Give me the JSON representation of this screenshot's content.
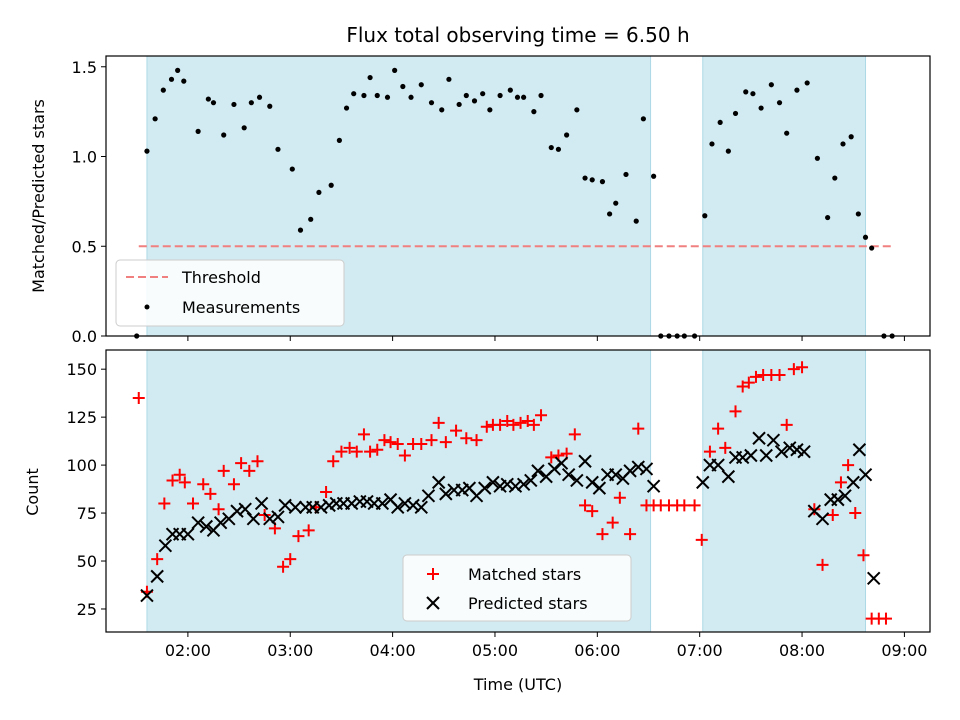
{
  "title": "Flux total observing time = 6.50 h",
  "colors": {
    "shade": "#add8e6",
    "threshold": "#f08080",
    "measurements": "#000000",
    "matched": "#ff0000",
    "predicted": "#000000"
  },
  "chart_data": [
    {
      "type": "scatter",
      "ylabel": "Matched/Predicted stars",
      "ylim": [
        0,
        1.56
      ],
      "yticks": [
        "0.0",
        "0.5",
        "1.0",
        "1.5"
      ],
      "xlim": [
        1.2,
        9.25
      ],
      "shaded_intervals": [
        [
          1.6,
          6.52
        ],
        [
          7.03,
          8.62
        ]
      ],
      "threshold": {
        "name": "Threshold",
        "value": 0.5,
        "x": [
          1.52,
          8.88
        ]
      },
      "legend": {
        "placement": "lower-left",
        "entries": [
          "Threshold",
          "Measurements"
        ]
      },
      "series": [
        {
          "name": "Measurements",
          "marker": "dot",
          "x": [
            1.5,
            1.6,
            1.68,
            1.76,
            1.84,
            1.9,
            1.96,
            2.1,
            2.2,
            2.25,
            2.35,
            2.45,
            2.55,
            2.62,
            2.7,
            2.8,
            2.88,
            3.02,
            3.1,
            3.2,
            3.28,
            3.4,
            3.48,
            3.55,
            3.62,
            3.72,
            3.78,
            3.85,
            3.95,
            4.02,
            4.1,
            4.18,
            4.28,
            4.38,
            4.48,
            4.55,
            4.65,
            4.72,
            4.8,
            4.88,
            4.95,
            5.05,
            5.15,
            5.22,
            5.28,
            5.38,
            5.45,
            5.55,
            5.62,
            5.7,
            5.8,
            5.88,
            5.95,
            6.05,
            6.12,
            6.18,
            6.28,
            6.38,
            6.45,
            6.55,
            6.62,
            6.7,
            6.78,
            6.85,
            6.95,
            7.05,
            7.12,
            7.2,
            7.28,
            7.35,
            7.45,
            7.52,
            7.6,
            7.7,
            7.78,
            7.85,
            7.95,
            8.05,
            8.15,
            8.25,
            8.32,
            8.4,
            8.48,
            8.55,
            8.62,
            8.68,
            8.8,
            8.88
          ],
          "y": [
            0,
            1.03,
            1.21,
            1.37,
            1.43,
            1.48,
            1.42,
            1.14,
            1.32,
            1.3,
            1.12,
            1.29,
            1.16,
            1.3,
            1.33,
            1.28,
            1.04,
            0.93,
            0.59,
            0.65,
            0.8,
            0.84,
            1.09,
            1.27,
            1.35,
            1.34,
            1.44,
            1.34,
            1.33,
            1.48,
            1.39,
            1.33,
            1.4,
            1.3,
            1.26,
            1.43,
            1.29,
            1.34,
            1.31,
            1.35,
            1.26,
            1.34,
            1.37,
            1.33,
            1.33,
            1.25,
            1.34,
            1.05,
            1.04,
            1.12,
            1.26,
            0.88,
            0.87,
            0.86,
            0.68,
            0.74,
            0.9,
            0.64,
            1.21,
            0.89,
            0,
            0,
            0,
            0,
            0,
            0.67,
            1.07,
            1.19,
            1.03,
            1.24,
            1.36,
            1.35,
            1.27,
            1.4,
            1.3,
            1.13,
            1.37,
            1.41,
            0.99,
            0.66,
            0.88,
            1.07,
            1.11,
            0.68,
            0.55,
            0.49,
            0,
            0
          ]
        }
      ]
    },
    {
      "type": "scatter",
      "xlabel": "Time (UTC)",
      "ylabel": "Count",
      "ylim": [
        13,
        160
      ],
      "yticks": [
        "25",
        "50",
        "75",
        "100",
        "125",
        "150"
      ],
      "xlim": [
        1.2,
        9.25
      ],
      "xticks": [
        "02:00",
        "03:00",
        "04:00",
        "05:00",
        "06:00",
        "07:00",
        "08:00",
        "09:00"
      ],
      "shaded_intervals": [
        [
          1.6,
          6.52
        ],
        [
          7.03,
          8.62
        ]
      ],
      "legend": {
        "placement": "lower-center",
        "entries": [
          "Matched stars",
          "Predicted stars"
        ]
      },
      "series": [
        {
          "name": "Matched stars",
          "marker": "plus",
          "x": [
            1.52,
            1.6,
            1.7,
            1.77,
            1.85,
            1.92,
            1.97,
            2.05,
            2.15,
            2.22,
            2.3,
            2.35,
            2.45,
            2.52,
            2.6,
            2.68,
            2.75,
            2.85,
            2.93,
            3.0,
            3.08,
            3.18,
            3.25,
            3.35,
            3.42,
            3.5,
            3.58,
            3.65,
            3.72,
            3.78,
            3.85,
            3.92,
            3.98,
            4.05,
            4.12,
            4.2,
            4.28,
            4.38,
            4.45,
            4.52,
            4.62,
            4.72,
            4.82,
            4.92,
            4.98,
            5.05,
            5.12,
            5.18,
            5.25,
            5.32,
            5.38,
            5.45,
            5.55,
            5.62,
            5.7,
            5.78,
            5.88,
            5.95,
            6.05,
            6.15,
            6.22,
            6.32,
            6.4,
            6.48,
            6.55,
            6.62,
            6.7,
            6.78,
            6.85,
            6.95,
            7.02,
            7.1,
            7.18,
            7.25,
            7.35,
            7.42,
            7.48,
            7.55,
            7.62,
            7.7,
            7.78,
            7.85,
            7.92,
            8.0,
            8.12,
            8.2,
            8.3,
            8.38,
            8.45,
            8.52,
            8.6,
            8.68,
            8.75,
            8.82
          ],
          "y": [
            135,
            34,
            51,
            80,
            92,
            95,
            91,
            80,
            90,
            85,
            77,
            97,
            90,
            101,
            97,
            102,
            74,
            67,
            47,
            51,
            63,
            66,
            78,
            86,
            102,
            107,
            109,
            107,
            116,
            107,
            108,
            113,
            112,
            111,
            105,
            111,
            111,
            113,
            122,
            112,
            118,
            114,
            113,
            120,
            121,
            121,
            123,
            121,
            122,
            123,
            121,
            126,
            104,
            105,
            106,
            116,
            79,
            76,
            64,
            70,
            83,
            64,
            119,
            79,
            79,
            79,
            79,
            79,
            79,
            79,
            61,
            107,
            119,
            109,
            128,
            141,
            143,
            146,
            147,
            147,
            147,
            121,
            150,
            151,
            77,
            48,
            74,
            91,
            100,
            75,
            53,
            20,
            20,
            20
          ]
        },
        {
          "name": "Predicted stars",
          "marker": "x",
          "x": [
            1.6,
            1.7,
            1.78,
            1.85,
            1.92,
            2.0,
            2.1,
            2.18,
            2.25,
            2.32,
            2.4,
            2.48,
            2.56,
            2.64,
            2.72,
            2.8,
            2.88,
            2.95,
            3.05,
            3.15,
            3.22,
            3.3,
            3.38,
            3.45,
            3.52,
            3.6,
            3.68,
            3.75,
            3.82,
            3.9,
            3.98,
            4.05,
            4.12,
            4.2,
            4.28,
            4.35,
            4.45,
            4.52,
            4.6,
            4.68,
            4.75,
            4.82,
            4.9,
            4.98,
            5.05,
            5.12,
            5.2,
            5.28,
            5.35,
            5.42,
            5.5,
            5.58,
            5.65,
            5.72,
            5.8,
            5.88,
            5.95,
            6.02,
            6.1,
            6.18,
            6.25,
            6.32,
            6.4,
            6.48,
            6.55,
            7.03,
            7.1,
            7.18,
            7.28,
            7.35,
            7.42,
            7.5,
            7.58,
            7.65,
            7.72,
            7.8,
            7.88,
            7.95,
            8.02,
            8.12,
            8.2,
            8.28,
            8.35,
            8.42,
            8.5,
            8.56,
            8.62,
            8.7
          ],
          "y": [
            32,
            42,
            58,
            64,
            64,
            64,
            70,
            68,
            66,
            70,
            72,
            76,
            77,
            72,
            80,
            72,
            73,
            79,
            78,
            78,
            78,
            78,
            79,
            80,
            80,
            80,
            81,
            81,
            80,
            80,
            82,
            78,
            80,
            79,
            78,
            84,
            91,
            85,
            87,
            87,
            88,
            84,
            88,
            91,
            89,
            90,
            89,
            90,
            92,
            97,
            94,
            98,
            101,
            95,
            92,
            102,
            91,
            88,
            95,
            95,
            93,
            97,
            99,
            98,
            89,
            91,
            100,
            100,
            94,
            104,
            104,
            105,
            114,
            105,
            113,
            107,
            109,
            108,
            107,
            76,
            72,
            82,
            82,
            84,
            91,
            108,
            95,
            41
          ]
        }
      ]
    }
  ]
}
